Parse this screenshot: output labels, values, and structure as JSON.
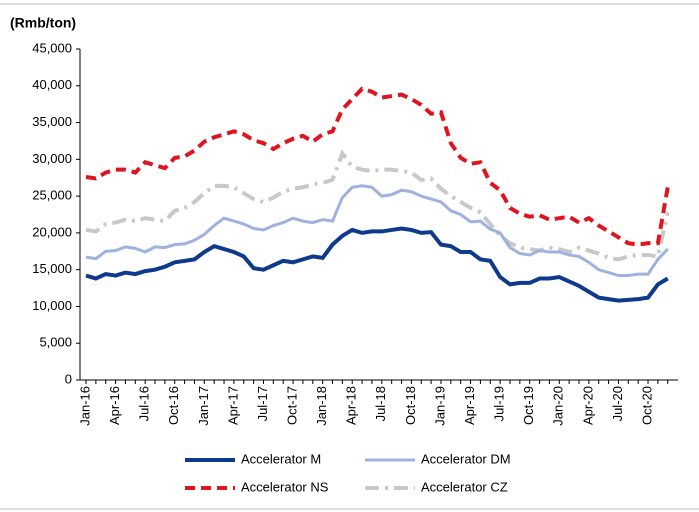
{
  "chart_data": {
    "type": "line",
    "title": "(Rmb/ton)",
    "categories": [
      "Jan-16",
      null,
      null,
      "Apr-16",
      null,
      null,
      "Jul-16",
      null,
      null,
      "Oct-16",
      null,
      null,
      "Jan-17",
      null,
      null,
      "Apr-17",
      null,
      null,
      "Jul-17",
      null,
      null,
      "Oct-17",
      null,
      null,
      "Jan-18",
      null,
      null,
      "Apr-18",
      null,
      null,
      "Jul-18",
      null,
      null,
      "Oct-18",
      null,
      null,
      "Jan-19",
      null,
      null,
      "Apr-19",
      null,
      null,
      "Jul-19",
      null,
      null,
      "Oct-19",
      null,
      null,
      "Jan-20",
      null,
      null,
      "Apr-20",
      null,
      null,
      "Jul-20",
      null,
      null,
      "Oct-20",
      null,
      null
    ],
    "ylim": [
      0,
      45000
    ],
    "yticks": [
      0,
      {
        "value": 5000,
        "label": "5,000"
      },
      {
        "value": 10000,
        "label": "10,000"
      },
      {
        "value": 15000,
        "label": "15,000"
      },
      {
        "value": 20000,
        "label": "20,000"
      },
      {
        "value": 25000,
        "label": "25,000"
      },
      {
        "value": 30000,
        "label": "30,000"
      },
      {
        "value": 35000,
        "label": "35,000"
      },
      {
        "value": 40000,
        "label": "40,000"
      },
      {
        "value": 45000,
        "label": "45,000"
      }
    ],
    "legend": "bottom",
    "series": [
      {
        "name": "Accelerator M",
        "color": "#0d3a8c",
        "line_style": "solid",
        "width": 4,
        "values": [
          14200,
          13800,
          14400,
          14200,
          14600,
          14400,
          14800,
          15000,
          15400,
          16000,
          16200,
          16400,
          17400,
          18200,
          17800,
          17400,
          16800,
          15200,
          15000,
          15600,
          16200,
          16000,
          16400,
          16800,
          16600,
          18400,
          19600,
          20400,
          20000,
          20200,
          20200,
          20400,
          20600,
          20400,
          20000,
          20100,
          18400,
          18200,
          17400,
          17400,
          16400,
          16200,
          14000,
          13000,
          13200,
          13200,
          13800,
          13800,
          14000,
          13400,
          12800,
          12000,
          11200,
          11000,
          10800,
          10900,
          11000,
          11200,
          13000,
          13800
        ]
      },
      {
        "name": "Accelerator DM",
        "color": "#9fb1e0",
        "line_style": "solid",
        "width": 3,
        "values": [
          16700,
          16500,
          17500,
          17600,
          18100,
          17900,
          17400,
          18100,
          18000,
          18400,
          18500,
          19000,
          19800,
          21000,
          22000,
          21600,
          21200,
          20600,
          20400,
          21000,
          21400,
          22000,
          21600,
          21400,
          21800,
          21600,
          24800,
          26200,
          26400,
          26200,
          25000,
          25200,
          25800,
          25600,
          25000,
          24600,
          24200,
          23000,
          22500,
          21500,
          21600,
          20500,
          20000,
          18000,
          17200,
          17000,
          17600,
          17400,
          17400,
          17000,
          16800,
          16000,
          15000,
          14600,
          14200,
          14200,
          14400,
          14400,
          16400,
          17800
        ]
      },
      {
        "name": "Accelerator NS",
        "color": "#e0141e",
        "line_style": "dashed",
        "width": 4,
        "values": [
          27600,
          27400,
          28200,
          28600,
          28600,
          28200,
          29600,
          29200,
          28800,
          30200,
          30400,
          31200,
          32400,
          33000,
          33400,
          33800,
          33400,
          32600,
          32200,
          31400,
          32200,
          32800,
          33200,
          32400,
          33400,
          33800,
          36800,
          38200,
          39600,
          39200,
          38400,
          38600,
          38800,
          38200,
          37400,
          36200,
          36400,
          32200,
          30200,
          29400,
          29600,
          26800,
          25800,
          23400,
          22600,
          22200,
          22400,
          21800,
          22000,
          22200,
          21400,
          22000,
          21000,
          20200,
          19400,
          18600,
          18400,
          18600,
          18600,
          26200
        ]
      },
      {
        "name": "Accelerator CZ",
        "color": "#c8c8c8",
        "line_style": "dashdot",
        "width": 4,
        "values": [
          20400,
          20200,
          21200,
          21400,
          21800,
          21600,
          22000,
          21800,
          21600,
          23000,
          23400,
          24200,
          25400,
          26400,
          26400,
          26200,
          25400,
          24600,
          24200,
          24800,
          25600,
          26000,
          26200,
          26600,
          26800,
          27200,
          30800,
          29000,
          28600,
          28400,
          28600,
          28600,
          28400,
          28200,
          27200,
          27400,
          26000,
          25000,
          24200,
          23400,
          22800,
          21200,
          19600,
          18600,
          18000,
          17800,
          17600,
          18000,
          17800,
          17400,
          18000,
          17600,
          17200,
          16600,
          16400,
          16800,
          17000,
          17000,
          16800,
          22800
        ]
      }
    ]
  }
}
